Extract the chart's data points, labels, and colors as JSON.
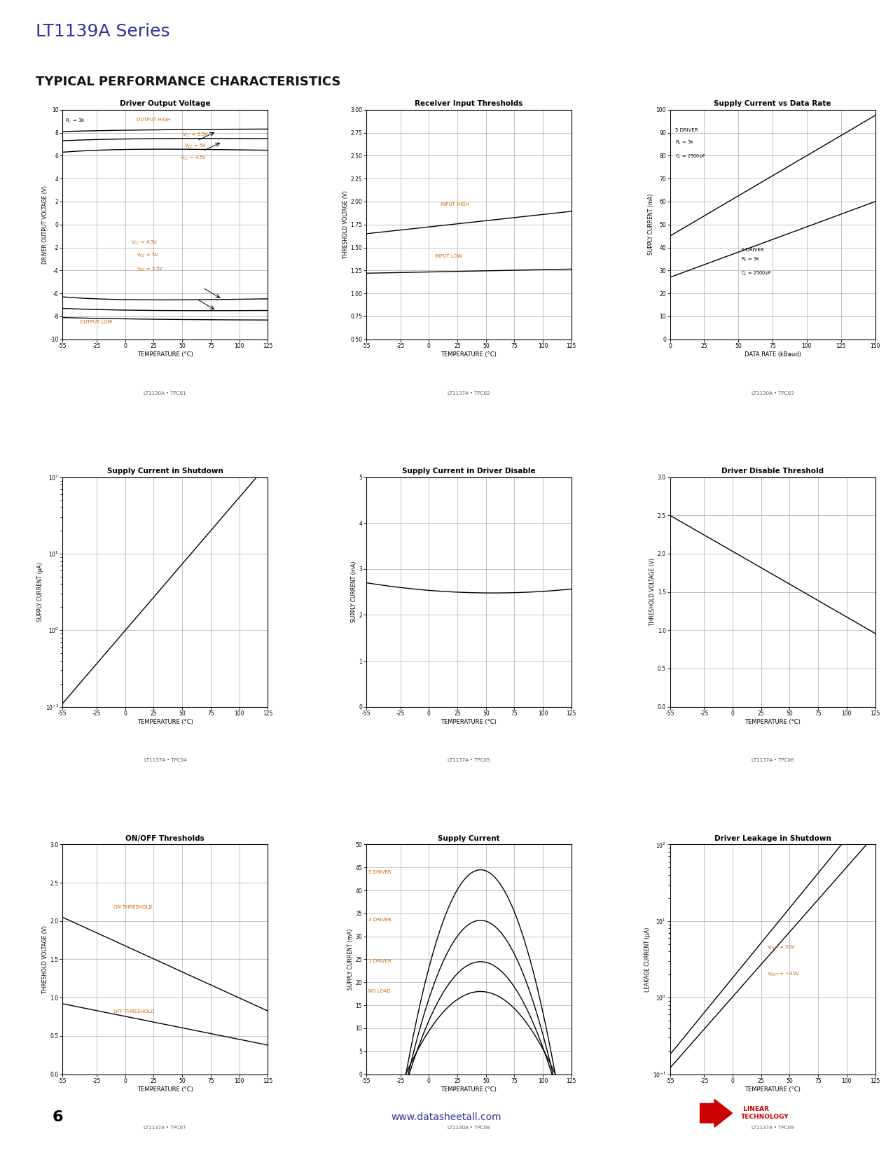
{
  "page_title": "LT1139A Series",
  "section_title": "TYPICAL PERFORMANCE CHARACTERISTICS",
  "background_color": "#ffffff",
  "grid_color": "#999999",
  "line_color": "#000000",
  "orange_color": "#cc6600",
  "plots": [
    {
      "title": "Driver Output Voltage",
      "xlabel": "TEMPERATURE (°C)",
      "ylabel": "DRIVER OUTPUT VOLTAGE (V)",
      "xmin": -55,
      "xmax": 125,
      "ymin": -10,
      "ymax": 10,
      "xticks": [
        -55,
        -25,
        0,
        25,
        50,
        75,
        100,
        125
      ],
      "yticks": [
        -10,
        -8,
        -6,
        -4,
        -2,
        0,
        2,
        4,
        6,
        8,
        10
      ],
      "tag": "LT1130A • TPC01"
    },
    {
      "title": "Receiver Input Thresholds",
      "xlabel": "TEMPERATURE (°C)",
      "ylabel": "THRESHOLD VOLTAGE (V)",
      "xmin": -55,
      "xmax": 125,
      "ymin": 0.5,
      "ymax": 3.0,
      "xticks": [
        -55,
        -25,
        0,
        25,
        50,
        75,
        100,
        125
      ],
      "yticks": [
        0.5,
        0.75,
        1.0,
        1.25,
        1.5,
        1.75,
        2.0,
        2.25,
        2.5,
        2.75,
        3.0
      ],
      "tag": "LT1137A • TPC02"
    },
    {
      "title": "Supply Current vs Data Rate",
      "xlabel": "DATA RATE (kBaud)",
      "ylabel": "SUPPLY CURRENT (mA)",
      "xmin": 0,
      "xmax": 150,
      "ymin": 0,
      "ymax": 100,
      "xticks": [
        0,
        25,
        50,
        75,
        100,
        125,
        150
      ],
      "yticks": [
        0,
        10,
        20,
        30,
        40,
        50,
        60,
        70,
        80,
        90,
        100
      ],
      "tag": "LT1130A • TPC03"
    },
    {
      "title": "Supply Current in Shutdown",
      "xlabel": "TEMPERATURE (°C)",
      "ylabel": "SUPPLY CURRENT (μA)",
      "xmin": -55,
      "xmax": 125,
      "ymin_log": 0.1,
      "ymax_log": 100,
      "xticks": [
        -55,
        -25,
        0,
        25,
        50,
        75,
        100,
        125
      ],
      "tag": "LT1137A • TPC04",
      "log_y": true
    },
    {
      "title": "Supply Current in Driver Disable",
      "xlabel": "TEMPERATURE (°C)",
      "ylabel": "SUPPLY CURRENT (mA)",
      "xmin": -55,
      "xmax": 125,
      "ymin": 0,
      "ymax": 5,
      "xticks": [
        -55,
        -25,
        0,
        25,
        50,
        75,
        100,
        125
      ],
      "yticks": [
        0,
        1,
        2,
        3,
        4,
        5
      ],
      "tag": "LT1137A • TPC05"
    },
    {
      "title": "Driver Disable Threshold",
      "xlabel": "TEMPERATURE (°C)",
      "ylabel": "THRESHOLD VOLTAGE (V)",
      "xmin": -55,
      "xmax": 125,
      "ymin": 0,
      "ymax": 3.0,
      "xticks": [
        -55,
        -25,
        0,
        25,
        50,
        75,
        100,
        125
      ],
      "yticks": [
        0,
        0.5,
        1.0,
        1.5,
        2.0,
        2.5,
        3.0
      ],
      "tag": "LT1137A • TPC06"
    },
    {
      "title": "ON/OFF Thresholds",
      "xlabel": "TEMPERATURE (°C)",
      "ylabel": "THRESHOLD VOLTAGE (V)",
      "xmin": -55,
      "xmax": 125,
      "ymin": 0,
      "ymax": 3.0,
      "xticks": [
        -55,
        -25,
        0,
        25,
        50,
        75,
        100,
        125
      ],
      "yticks": [
        0,
        0.5,
        1.0,
        1.5,
        2.0,
        2.5,
        3.0
      ],
      "tag": "LT1137A • TPC07"
    },
    {
      "title": "Supply Current",
      "xlabel": "TEMPERATURE (°C)",
      "ylabel": "SUPPLY CURRENT (mA)",
      "xmin": -55,
      "xmax": 125,
      "ymin": 0,
      "ymax": 50,
      "xticks": [
        -55,
        -25,
        0,
        25,
        50,
        75,
        100,
        125
      ],
      "yticks": [
        0,
        5,
        10,
        15,
        20,
        25,
        30,
        35,
        40,
        45,
        50
      ],
      "tag": "LT1130A • TPC08"
    },
    {
      "title": "Driver Leakage in Shutdown",
      "xlabel": "TEMPERATURE (°C)",
      "ylabel": "LEAKAGE CURRENT (μA)",
      "xmin": -55,
      "xmax": 125,
      "ymin_log": 0.1,
      "ymax_log": 100,
      "xticks": [
        -55,
        -25,
        0,
        25,
        50,
        75,
        100,
        125
      ],
      "tag": "LT1137A • TPC09",
      "log_y": true
    }
  ]
}
